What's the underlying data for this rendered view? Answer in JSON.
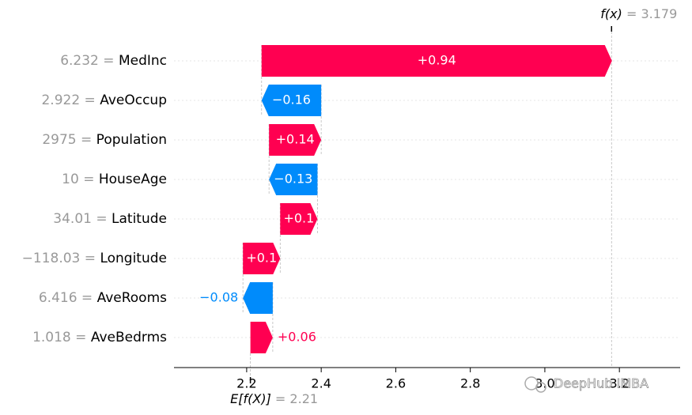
{
  "chart_data": {
    "type": "waterfall",
    "categories": [
      "MedInc",
      "AveOccup",
      "Population",
      "HouseAge",
      "Latitude",
      "Longitude",
      "AveRooms",
      "AveBedrms"
    ],
    "feature_values": [
      "6.232",
      "2.922",
      "2975",
      "10",
      "34.01",
      "−118.03",
      "6.416",
      "1.018"
    ],
    "separator": "=",
    "values": [
      0.94,
      -0.16,
      0.14,
      -0.13,
      0.1,
      0.1,
      -0.08,
      0.06
    ],
    "value_labels": [
      "+0.94",
      "−0.16",
      "+0.14",
      "−0.13",
      "+0.1",
      "+0.1",
      "−0.08",
      "+0.06"
    ],
    "positive_color": "#ff0051",
    "negative_color": "#008bfb",
    "base_label": "E[f(X)]",
    "base_value": 2.21,
    "output_label": "f(x)",
    "output_value": 3.179,
    "xlim": [
      2.005,
      3.363
    ],
    "xticks": [
      2.2,
      2.4,
      2.6,
      2.8,
      {
        "value": 3,
        "label": "3.0"
      },
      3.2
    ],
    "grid": true,
    "watermark": "DeepHub IMBA"
  }
}
